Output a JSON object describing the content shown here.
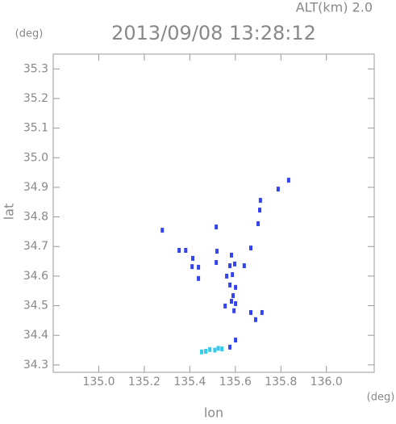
{
  "chart_data": {
    "type": "scatter",
    "title": "2013/09/08 13:28:12",
    "altitude_label": "ALT(km) 2.0",
    "y_unit": "(deg)",
    "x_unit": "(deg)",
    "ylabel": "lat",
    "xlabel": "lon",
    "xlim": [
      134.8,
      136.21
    ],
    "ylim": [
      34.275,
      35.35
    ],
    "xticks": [
      {
        "value": 135,
        "label": "135.0"
      },
      135.2,
      135.4,
      135.6,
      135.8,
      {
        "value": 136,
        "label": "136.0"
      }
    ],
    "yticks": [
      34.3,
      34.4,
      34.5,
      34.6,
      34.7,
      34.8,
      34.9,
      {
        "value": 35,
        "label": "35.0"
      },
      35.1,
      35.2,
      35.3
    ],
    "series": [
      {
        "color": "#3344ee",
        "x": [
          135.834,
          135.788,
          135.71,
          135.707,
          135.7,
          135.279,
          135.516,
          135.353,
          135.382,
          135.519,
          135.668,
          135.413,
          135.583,
          135.41,
          135.438,
          135.516,
          135.597,
          135.639,
          135.576,
          135.438,
          135.562,
          135.587,
          135.576,
          135.601,
          135.59,
          135.583,
          135.555,
          135.601,
          135.594,
          135.668,
          135.717,
          135.689,
          135.601,
          135.576
        ],
        "y": [
          34.924,
          34.894,
          34.856,
          34.823,
          34.777,
          34.755,
          34.766,
          34.687,
          34.687,
          34.684,
          34.695,
          34.66,
          34.671,
          34.632,
          34.63,
          34.646,
          34.641,
          34.635,
          34.635,
          34.592,
          34.6,
          34.605,
          34.57,
          34.562,
          34.534,
          34.515,
          34.499,
          34.507,
          34.483,
          34.477,
          34.477,
          34.453,
          34.384,
          34.36
        ]
      },
      {
        "color": "#33ccee",
        "x": [
          135.452,
          135.47,
          135.488,
          135.51,
          135.525,
          135.541
        ],
        "y": [
          34.344,
          34.346,
          34.352,
          34.35,
          34.356,
          34.354
        ]
      }
    ]
  }
}
